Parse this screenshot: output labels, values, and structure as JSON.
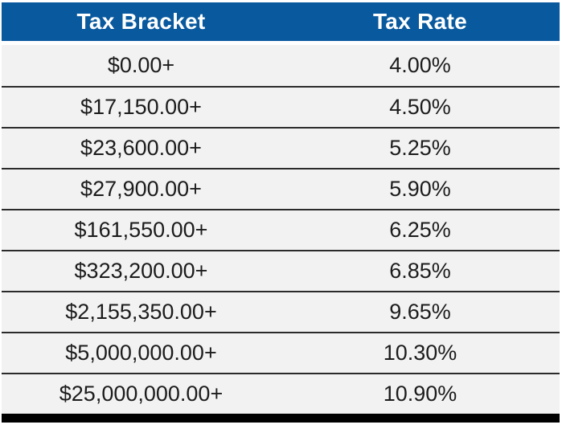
{
  "chart_data": {
    "type": "table",
    "columns": [
      "Tax Bracket",
      "Tax Rate"
    ],
    "rows": [
      {
        "bracket": "$0.00+",
        "rate": "4.00%"
      },
      {
        "bracket": "$17,150.00+",
        "rate": "4.50%"
      },
      {
        "bracket": "$23,600.00+",
        "rate": "5.25%"
      },
      {
        "bracket": "$27,900.00+",
        "rate": "5.90%"
      },
      {
        "bracket": "$161,550.00+",
        "rate": "6.25%"
      },
      {
        "bracket": "$323,200.00+",
        "rate": "6.85%"
      },
      {
        "bracket": "$2,155,350.00+",
        "rate": "9.65%"
      },
      {
        "bracket": "$5,000,000.00+",
        "rate": "10.30%"
      },
      {
        "bracket": "$25,000,000.00+",
        "rate": "10.90%"
      }
    ]
  },
  "colors": {
    "header_bg": "#09599E",
    "header_text": "#FFFFFF",
    "row_bg": "#F2F2F2",
    "separator": "#2B2B2B",
    "bottom_bar": "#000000",
    "body_text": "#1C1C1C"
  }
}
